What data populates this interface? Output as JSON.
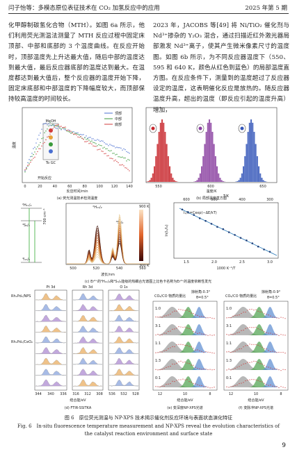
{
  "header": {
    "left": "闫子怡等：多模态原位表征技术在 CO₂ 加氢反应中的应用",
    "right": "2025 年第 5 期"
  },
  "body": {
    "left": "化甲醇制碳氢化合物（MTH）。如图 6a 所示，他们利用荧光测温法测量了 MTH 反应过程中固定床顶部、中部和底部的 3 个温度曲线。在反应开始时，顶部温度先上升达最大值，随后中部的温度达到最大值，最后反应器底部的温度达到最大。在温度都达到最大值后，整个反应器的温度开始下降，固定床底部和中部温度的下降幅度较大，而顶部保持较高温度的时间较长。",
    "right": "2023 年，JACOBS 等[49] 将 Ni/TiO₂ 催化剂与 Nd³⁺掺杂的 Y₂O₃ 混合，通过扫描近红外激光器局部激发 Nd³⁺离子，使其产生微米像素尺寸的温度图。如图 6b 所示，为不同反应器温度下（550、595 和 640 K，颜色从红色到蓝色）的局部温度直方图。在反应条件下，测量到的温度超过了反应器设定的温度，这表明催化反应是放热的。随反应器温度升高，超出的温度（即反应引起的温度升高）增加，"
  },
  "figure": {
    "a": {
      "caption": "(a) 荧光测温技术检测温度",
      "y_label": "温度",
      "x_label": "反应时间/min",
      "x_ticks": [
        "0",
        "20",
        "40",
        "60",
        "80",
        "100",
        "120",
        "140"
      ],
      "legend": [
        "顶部",
        "中部",
        "底部"
      ],
      "inset": [
        "MeOH",
        "To GC"
      ],
      "start": "开始反应"
    },
    "b": {
      "caption": "(b) 局部温度直方图",
      "x_label": "温度/K",
      "x_ticks": [
        "550",
        "600",
        "650"
      ]
    },
    "c": {
      "caption": "(c) Er³⁺的²H₁₁/₂和⁴S₃/₂能级的热耦合光谱图上比色卡名称为Er³⁺的温度依赖性发光",
      "levels": [
        "²H₁₁/₂",
        "⁴S₃/₂",
        "⁴I₁₅/₂"
      ],
      "gap": "700 cm⁻¹",
      "peaks": [
        "²H₁₁/₂",
        "⁴S₃/₂"
      ],
      "colorbar": [
        "900 K",
        "300 K"
      ],
      "x_label": "波长/nm",
      "x_ticks": [
        "500",
        "520",
        "540",
        "560"
      ],
      "top_label": "T/K",
      "top_ticks": [
        "600",
        "500",
        "400",
        "300"
      ],
      "bottom_label": "1000 K⁻¹/T",
      "bottom_ticks": [
        "1.5",
        "2.0",
        "2.5",
        "3.0"
      ],
      "y_label": "ln(I₁/I₂)",
      "formula": "I₁/I₂=Cexp(−ΔE/kT)"
    },
    "d": {
      "caption": "(d) FTIR-SSITKA",
      "panels": [
        "Pt 3d",
        "Rh 3d",
        "O 1s"
      ],
      "samples": [
        "Rh₁Pd₁/NPS",
        "Rh₁Pd₁/CeO₂"
      ],
      "ticks": [
        [
          "344",
          "340",
          "336"
        ],
        [
          "316",
          "312",
          "308"
        ],
        [
          "536",
          "532",
          "528"
        ]
      ],
      "x_label": "结合能/eV"
    },
    "e": {
      "caption": "(e) 变深度NP-XPS光谱",
      "ratio_label": "CO₂/CO 物质的量比",
      "angle": "掠射角:0.3°",
      "theta": "θ=0.5°",
      "ratios": [
        "1:0",
        "3:1",
        "1:1",
        "1:3",
        "0:1"
      ],
      "x_ticks": [
        "12",
        "10",
        "8"
      ],
      "x_label": "结合能/eV"
    },
    "f": {
      "caption": "(f) 变脉冲NP-XPS光谱",
      "ratio_label": "CO₂/CO 物质的量比",
      "angle": "掠射角:0.9°",
      "theta": "θ=0.5°",
      "ratios": [
        "1:0",
        "3:1",
        "1:1",
        "1:3",
        "0:1"
      ],
      "x_ticks": [
        "12",
        "10",
        "8"
      ],
      "x_label": "结合能/eV"
    }
  },
  "caption_zh": "图 6　原位荧光测温与 NP-XPS 技术揭示催化剂反应环境与表面状态演化特征",
  "caption_en": "Fig. 6　In-situ fluorescence temperature measurement and NP-XPS reveal the evolution characteristics of the catalyst reaction environment and surface state",
  "page_number": "9"
}
